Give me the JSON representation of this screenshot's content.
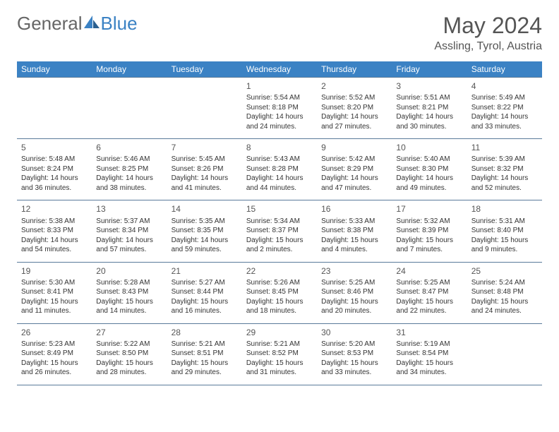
{
  "brand": {
    "part1": "General",
    "part2": "Blue"
  },
  "title": "May 2024",
  "location": "Assling, Tyrol, Austria",
  "header_bg": "#3b82c4",
  "rule_color": "#5a7a9a",
  "day_headers": [
    "Sunday",
    "Monday",
    "Tuesday",
    "Wednesday",
    "Thursday",
    "Friday",
    "Saturday"
  ],
  "weeks": [
    [
      null,
      null,
      null,
      {
        "n": "1",
        "sr": "5:54 AM",
        "ss": "8:18 PM",
        "dl": "14 hours and 24 minutes."
      },
      {
        "n": "2",
        "sr": "5:52 AM",
        "ss": "8:20 PM",
        "dl": "14 hours and 27 minutes."
      },
      {
        "n": "3",
        "sr": "5:51 AM",
        "ss": "8:21 PM",
        "dl": "14 hours and 30 minutes."
      },
      {
        "n": "4",
        "sr": "5:49 AM",
        "ss": "8:22 PM",
        "dl": "14 hours and 33 minutes."
      }
    ],
    [
      {
        "n": "5",
        "sr": "5:48 AM",
        "ss": "8:24 PM",
        "dl": "14 hours and 36 minutes."
      },
      {
        "n": "6",
        "sr": "5:46 AM",
        "ss": "8:25 PM",
        "dl": "14 hours and 38 minutes."
      },
      {
        "n": "7",
        "sr": "5:45 AM",
        "ss": "8:26 PM",
        "dl": "14 hours and 41 minutes."
      },
      {
        "n": "8",
        "sr": "5:43 AM",
        "ss": "8:28 PM",
        "dl": "14 hours and 44 minutes."
      },
      {
        "n": "9",
        "sr": "5:42 AM",
        "ss": "8:29 PM",
        "dl": "14 hours and 47 minutes."
      },
      {
        "n": "10",
        "sr": "5:40 AM",
        "ss": "8:30 PM",
        "dl": "14 hours and 49 minutes."
      },
      {
        "n": "11",
        "sr": "5:39 AM",
        "ss": "8:32 PM",
        "dl": "14 hours and 52 minutes."
      }
    ],
    [
      {
        "n": "12",
        "sr": "5:38 AM",
        "ss": "8:33 PM",
        "dl": "14 hours and 54 minutes."
      },
      {
        "n": "13",
        "sr": "5:37 AM",
        "ss": "8:34 PM",
        "dl": "14 hours and 57 minutes."
      },
      {
        "n": "14",
        "sr": "5:35 AM",
        "ss": "8:35 PM",
        "dl": "14 hours and 59 minutes."
      },
      {
        "n": "15",
        "sr": "5:34 AM",
        "ss": "8:37 PM",
        "dl": "15 hours and 2 minutes."
      },
      {
        "n": "16",
        "sr": "5:33 AM",
        "ss": "8:38 PM",
        "dl": "15 hours and 4 minutes."
      },
      {
        "n": "17",
        "sr": "5:32 AM",
        "ss": "8:39 PM",
        "dl": "15 hours and 7 minutes."
      },
      {
        "n": "18",
        "sr": "5:31 AM",
        "ss": "8:40 PM",
        "dl": "15 hours and 9 minutes."
      }
    ],
    [
      {
        "n": "19",
        "sr": "5:30 AM",
        "ss": "8:41 PM",
        "dl": "15 hours and 11 minutes."
      },
      {
        "n": "20",
        "sr": "5:28 AM",
        "ss": "8:43 PM",
        "dl": "15 hours and 14 minutes."
      },
      {
        "n": "21",
        "sr": "5:27 AM",
        "ss": "8:44 PM",
        "dl": "15 hours and 16 minutes."
      },
      {
        "n": "22",
        "sr": "5:26 AM",
        "ss": "8:45 PM",
        "dl": "15 hours and 18 minutes."
      },
      {
        "n": "23",
        "sr": "5:25 AM",
        "ss": "8:46 PM",
        "dl": "15 hours and 20 minutes."
      },
      {
        "n": "24",
        "sr": "5:25 AM",
        "ss": "8:47 PM",
        "dl": "15 hours and 22 minutes."
      },
      {
        "n": "25",
        "sr": "5:24 AM",
        "ss": "8:48 PM",
        "dl": "15 hours and 24 minutes."
      }
    ],
    [
      {
        "n": "26",
        "sr": "5:23 AM",
        "ss": "8:49 PM",
        "dl": "15 hours and 26 minutes."
      },
      {
        "n": "27",
        "sr": "5:22 AM",
        "ss": "8:50 PM",
        "dl": "15 hours and 28 minutes."
      },
      {
        "n": "28",
        "sr": "5:21 AM",
        "ss": "8:51 PM",
        "dl": "15 hours and 29 minutes."
      },
      {
        "n": "29",
        "sr": "5:21 AM",
        "ss": "8:52 PM",
        "dl": "15 hours and 31 minutes."
      },
      {
        "n": "30",
        "sr": "5:20 AM",
        "ss": "8:53 PM",
        "dl": "15 hours and 33 minutes."
      },
      {
        "n": "31",
        "sr": "5:19 AM",
        "ss": "8:54 PM",
        "dl": "15 hours and 34 minutes."
      },
      null
    ]
  ],
  "labels": {
    "sunrise": "Sunrise:",
    "sunset": "Sunset:",
    "daylight": "Daylight:"
  }
}
